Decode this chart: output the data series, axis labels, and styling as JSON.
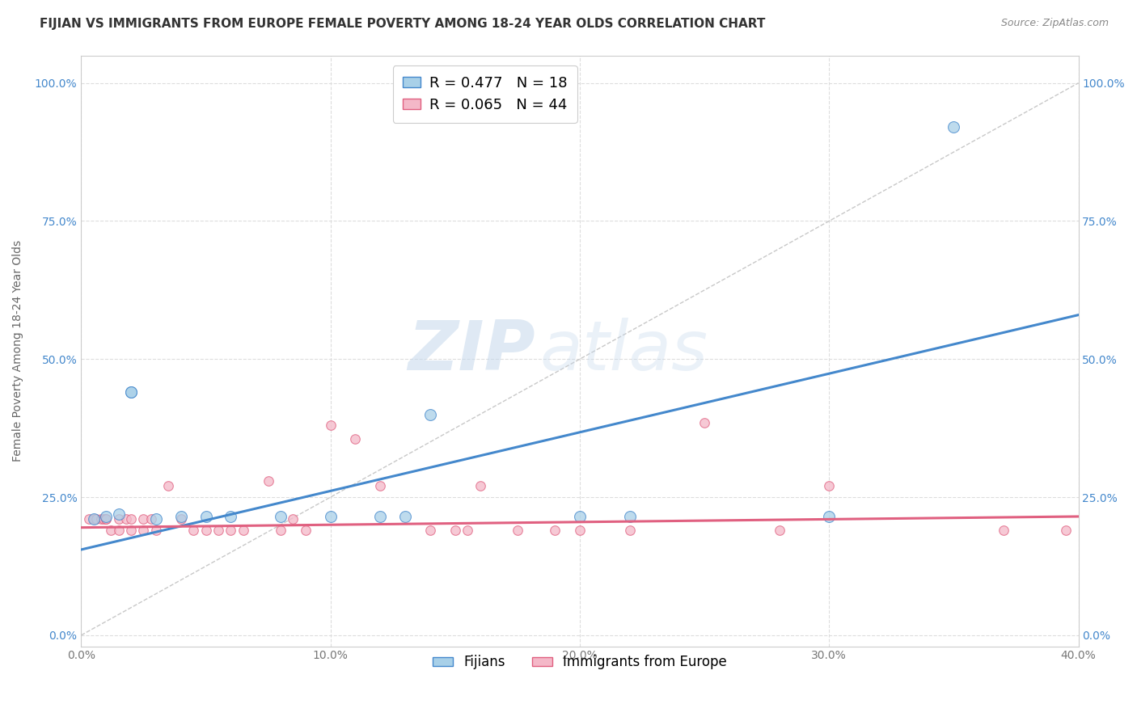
{
  "title": "FIJIAN VS IMMIGRANTS FROM EUROPE FEMALE POVERTY AMONG 18-24 YEAR OLDS CORRELATION CHART",
  "source": "Source: ZipAtlas.com",
  "ylabel": "Female Poverty Among 18-24 Year Olds",
  "xlim": [
    0.0,
    0.4
  ],
  "ylim": [
    -0.02,
    1.05
  ],
  "xticks": [
    0.0,
    0.1,
    0.2,
    0.3,
    0.4
  ],
  "xticklabels": [
    "0.0%",
    "10.0%",
    "20.0%",
    "30.0%",
    "40.0%"
  ],
  "yticks": [
    0.0,
    0.25,
    0.5,
    0.75,
    1.0
  ],
  "yticklabels": [
    "0.0%",
    "25.0%",
    "50.0%",
    "75.0%",
    "100.0%"
  ],
  "fijian_R": 0.477,
  "fijian_N": 18,
  "europe_R": 0.065,
  "europe_N": 44,
  "fijian_color": "#a8d0e8",
  "europe_color": "#f4b8c8",
  "fijian_line_color": "#4488cc",
  "europe_line_color": "#e06080",
  "ref_line_color": "#c8c8c8",
  "background_color": "#ffffff",
  "grid_color": "#dddddd",
  "fijian_x": [
    0.005,
    0.01,
    0.015,
    0.02,
    0.02,
    0.03,
    0.04,
    0.05,
    0.06,
    0.08,
    0.1,
    0.12,
    0.13,
    0.14,
    0.2,
    0.22,
    0.3,
    0.35
  ],
  "fijian_y": [
    0.21,
    0.215,
    0.22,
    0.44,
    0.44,
    0.21,
    0.215,
    0.215,
    0.215,
    0.215,
    0.215,
    0.215,
    0.215,
    0.4,
    0.215,
    0.215,
    0.215,
    0.92
  ],
  "europe_x": [
    0.003,
    0.005,
    0.006,
    0.008,
    0.009,
    0.01,
    0.01,
    0.012,
    0.015,
    0.015,
    0.018,
    0.02,
    0.02,
    0.025,
    0.025,
    0.028,
    0.03,
    0.035,
    0.04,
    0.045,
    0.05,
    0.055,
    0.06,
    0.065,
    0.075,
    0.08,
    0.085,
    0.09,
    0.1,
    0.11,
    0.12,
    0.14,
    0.15,
    0.155,
    0.16,
    0.175,
    0.19,
    0.2,
    0.22,
    0.25,
    0.28,
    0.3,
    0.37,
    0.395
  ],
  "europe_y": [
    0.21,
    0.21,
    0.21,
    0.21,
    0.21,
    0.21,
    0.21,
    0.19,
    0.21,
    0.19,
    0.21,
    0.19,
    0.21,
    0.21,
    0.19,
    0.21,
    0.19,
    0.27,
    0.21,
    0.19,
    0.19,
    0.19,
    0.19,
    0.19,
    0.28,
    0.19,
    0.21,
    0.19,
    0.38,
    0.355,
    0.27,
    0.19,
    0.19,
    0.19,
    0.27,
    0.19,
    0.19,
    0.19,
    0.19,
    0.385,
    0.19,
    0.27,
    0.19,
    0.19
  ],
  "fijian_trendline_x": [
    0.0,
    0.4
  ],
  "fijian_trendline_y": [
    0.155,
    0.58
  ],
  "europe_trendline_x": [
    0.0,
    0.4
  ],
  "europe_trendline_y": [
    0.195,
    0.215
  ],
  "ref_line_x": [
    0.0,
    0.4
  ],
  "ref_line_y": [
    0.0,
    1.0
  ],
  "marker_size_fijian": 100,
  "marker_size_europe": 70,
  "watermark_zip": "ZIP",
  "watermark_atlas": "atlas",
  "title_fontsize": 11,
  "axis_fontsize": 10,
  "tick_fontsize": 10,
  "legend_fontsize": 13
}
